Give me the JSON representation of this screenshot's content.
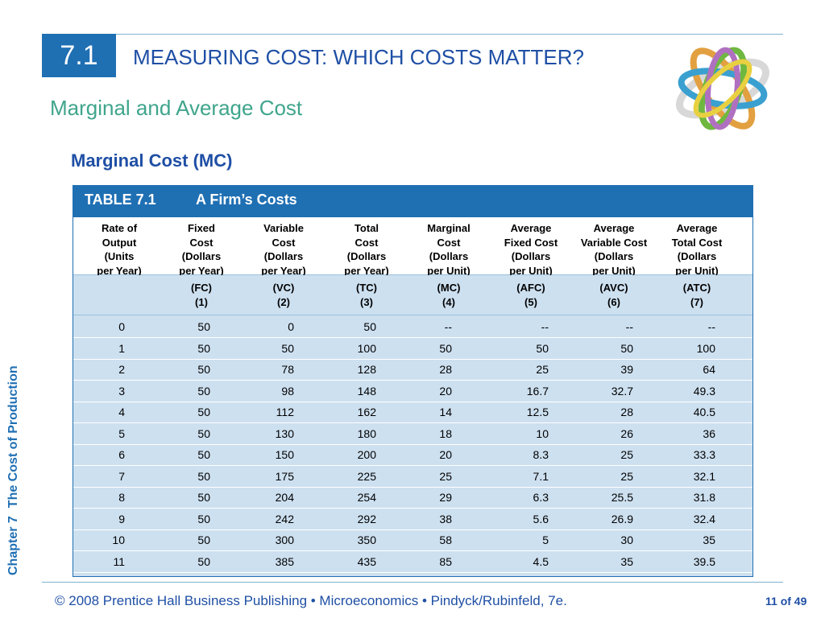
{
  "slide": {
    "section_number": "7.1",
    "header_title": "MEASURING COST: WHICH COSTS MATTER?",
    "subtitle": "Marginal and Average Cost",
    "section_heading": "Marginal Cost (MC)",
    "side_label_chapter": "Chapter 7",
    "side_label_title": "The Cost of Production",
    "footer_text": "© 2008 Prentice Hall Business Publishing  •  Microeconomics  •  Pindyck/Rubinfeld, 7e.",
    "page_number": "11 of 49"
  },
  "table": {
    "number": "TABLE 7.1",
    "name": "A Firm’s Costs",
    "columns": [
      {
        "header": [
          "Rate of",
          "Output",
          "(Units",
          "per Year)"
        ],
        "abbr": [
          "",
          ""
        ]
      },
      {
        "header": [
          "Fixed",
          "Cost",
          "(Dollars",
          "per Year)"
        ],
        "abbr": [
          "(FC)",
          "(1)"
        ]
      },
      {
        "header": [
          "Variable",
          "Cost",
          "(Dollars",
          "per Year)"
        ],
        "abbr": [
          "(VC)",
          "(2)"
        ]
      },
      {
        "header": [
          "Total",
          "Cost",
          "(Dollars",
          "per Year)"
        ],
        "abbr": [
          "(TC)",
          "(3)"
        ]
      },
      {
        "header": [
          "Marginal",
          "Cost",
          "(Dollars",
          "per Unit)"
        ],
        "abbr": [
          "(MC)",
          "(4)"
        ]
      },
      {
        "header": [
          "Average",
          "Fixed Cost",
          "(Dollars",
          "per Unit)"
        ],
        "abbr": [
          "(AFC)",
          "(5)"
        ]
      },
      {
        "header": [
          "Average",
          "Variable Cost",
          "(Dollars",
          "per Unit)"
        ],
        "abbr": [
          "(AVC)",
          "(6)"
        ]
      },
      {
        "header": [
          "Average",
          "Total Cost",
          "(Dollars",
          "per Unit)"
        ],
        "abbr": [
          "(ATC)",
          "(7)"
        ]
      }
    ],
    "rows": [
      [
        "0",
        "50",
        "0",
        "50",
        "--",
        "--",
        "--",
        "--"
      ],
      [
        "1",
        "50",
        "50",
        "100",
        "50",
        "50",
        "50",
        "100"
      ],
      [
        "2",
        "50",
        "78",
        "128",
        "28",
        "25",
        "39",
        "64"
      ],
      [
        "3",
        "50",
        "98",
        "148",
        "20",
        "16.7",
        "32.7",
        "49.3"
      ],
      [
        "4",
        "50",
        "112",
        "162",
        "14",
        "12.5",
        "28",
        "40.5"
      ],
      [
        "5",
        "50",
        "130",
        "180",
        "18",
        "10",
        "26",
        "36"
      ],
      [
        "6",
        "50",
        "150",
        "200",
        "20",
        "8.3",
        "25",
        "33.3"
      ],
      [
        "7",
        "50",
        "175",
        "225",
        "25",
        "7.1",
        "25",
        "32.1"
      ],
      [
        "8",
        "50",
        "204",
        "254",
        "29",
        "6.3",
        "25.5",
        "31.8"
      ],
      [
        "9",
        "50",
        "242",
        "292",
        "38",
        "5.6",
        "26.9",
        "32.4"
      ],
      [
        "10",
        "50",
        "300",
        "350",
        "58",
        "5",
        "30",
        "35"
      ],
      [
        "11",
        "50",
        "385",
        "435",
        "85",
        "4.5",
        "35",
        "39.5"
      ]
    ]
  },
  "colors": {
    "accent_blue": "#1f6fb3",
    "title_blue": "#1f4fa5",
    "subtitle_green": "#3fa58c",
    "table_fill": "#cde0f0"
  },
  "icons": {
    "logo": "interlocking-rings-logo"
  }
}
